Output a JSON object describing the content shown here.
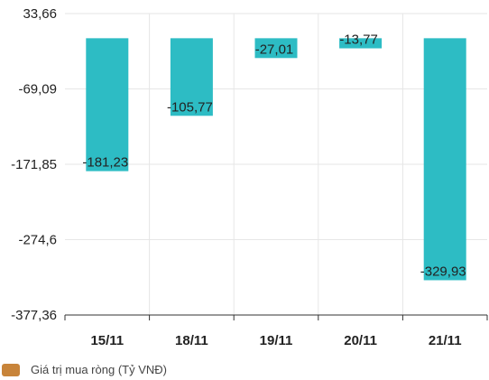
{
  "chart_data": {
    "type": "bar",
    "categories": [
      "15/11",
      "18/11",
      "19/11",
      "20/11",
      "21/11"
    ],
    "series": [
      {
        "name": "Giá trị mua ròng (Tỷ VNĐ)",
        "values": [
          -181.23,
          -105.77,
          -27.01,
          -13.77,
          -329.93
        ]
      }
    ],
    "value_labels": [
      "-181,23",
      "-105,77",
      "-27,01",
      "-13,77",
      "-329,93"
    ],
    "y_ticks": [
      33.66,
      -69.09,
      -171.85,
      -274.6,
      -377.36
    ],
    "y_tick_labels": [
      "33,66",
      "-69,09",
      "-171,85",
      "-274,6",
      "-377,36"
    ],
    "ylim": [
      -377.36,
      33.66
    ],
    "grid": true,
    "legend_position": "bottom-left",
    "colors": {
      "bar": "#2dbcc4",
      "legend_swatch": "#c8843a",
      "grid": "#e6e6e6",
      "axis": "#333333"
    }
  }
}
